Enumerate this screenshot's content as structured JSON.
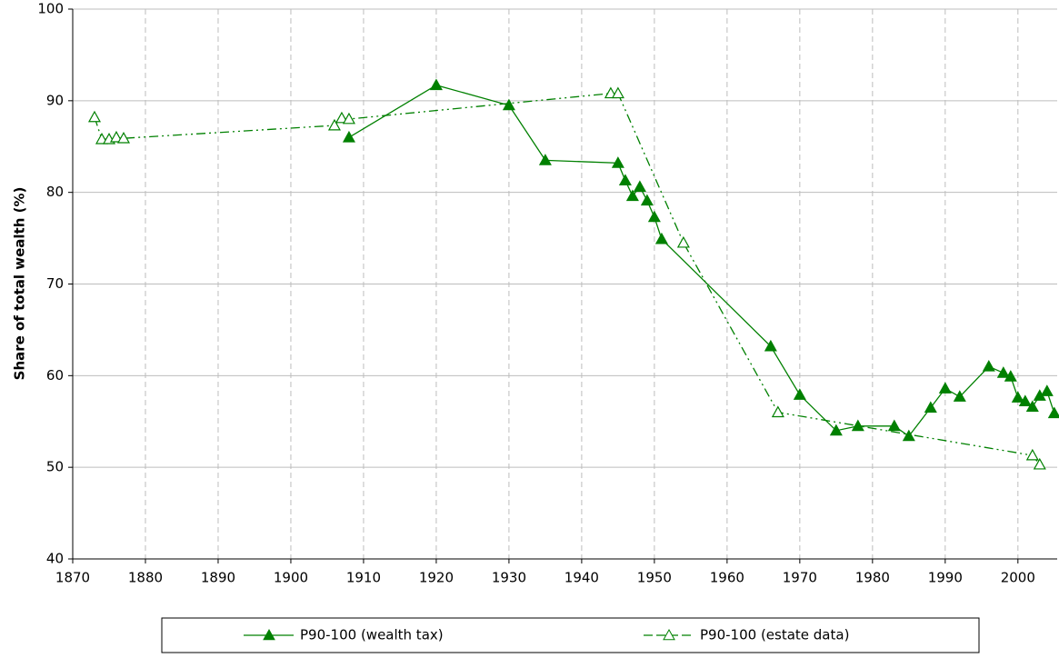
{
  "chart_data": {
    "type": "line",
    "y_label": "Share of total wealth (%)",
    "xlim": [
      1870,
      2005.4
    ],
    "ylim": [
      40,
      100
    ],
    "xticks": [
      1870,
      1880,
      1890,
      1900,
      1910,
      1920,
      1930,
      1940,
      1950,
      1960,
      1970,
      1980,
      1990,
      2000
    ],
    "yticks": [
      40,
      50,
      60,
      70,
      80,
      90,
      100
    ],
    "grid": true,
    "legend": "bottom",
    "series": [
      {
        "name": "P90-100 (wealth tax)",
        "color": "#008000",
        "marker": "filled",
        "line_style": "solid",
        "x": [
          1908,
          1920,
          1930,
          1935,
          1945,
          1946,
          1947,
          1948,
          1949,
          1950,
          1951,
          1966,
          1970,
          1975,
          1978,
          1983,
          1985,
          1988,
          1990,
          1992,
          1996,
          1998,
          1999,
          2000,
          2001,
          2002,
          2003,
          2004,
          2005
        ],
        "values": [
          86.0,
          91.7,
          89.5,
          83.5,
          83.2,
          81.3,
          79.6,
          80.6,
          79.1,
          77.3,
          74.9,
          63.2,
          57.9,
          54.0,
          54.5,
          54.5,
          53.4,
          56.5,
          58.6,
          57.7,
          61.0,
          60.3,
          59.9,
          57.6,
          57.2,
          56.6,
          57.8,
          58.3,
          55.9
        ]
      },
      {
        "name": "P90-100 (estate data)",
        "color": "#008000",
        "marker": "hollow",
        "line_style": "dashdot",
        "x": [
          1873,
          1874,
          1875,
          1876,
          1877,
          1906,
          1907,
          1908,
          1944,
          1945,
          1954,
          1967,
          2002,
          2003
        ],
        "values": [
          88.2,
          85.8,
          85.8,
          86.0,
          85.9,
          87.3,
          88.1,
          88.0,
          90.8,
          90.8,
          74.5,
          56.0,
          51.3,
          50.3
        ]
      }
    ]
  }
}
